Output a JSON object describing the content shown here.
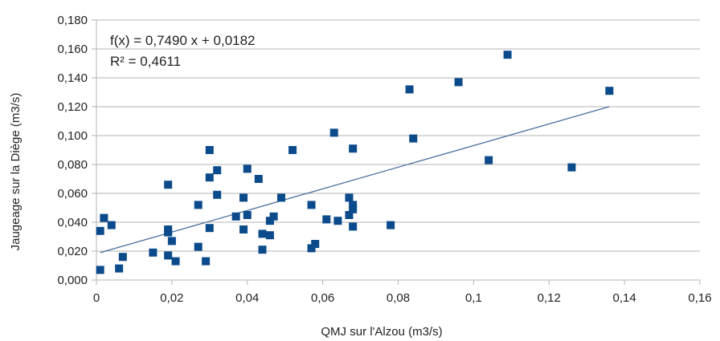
{
  "chart_data": {
    "type": "scatter",
    "title": "",
    "xlabel": "QMJ sur l'Alzou (m3/s)",
    "ylabel": "Jaugeage sur la Diège (m3/s)",
    "xlim": [
      0,
      0.16
    ],
    "ylim": [
      0,
      0.18
    ],
    "grid": true,
    "x_ticks": [
      "0",
      "0,02",
      "0,04",
      "0,06",
      "0,08",
      "0,1",
      "0,12",
      "0,14",
      "0,16"
    ],
    "y_ticks": [
      "0,000",
      "0,020",
      "0,040",
      "0,060",
      "0,080",
      "0,100",
      "0,120",
      "0,140",
      "0,160",
      "0,180"
    ],
    "series": [
      {
        "marker": "square",
        "color": "#0b4a8b",
        "points": [
          [
            0.001,
            0.007
          ],
          [
            0.001,
            0.034
          ],
          [
            0.002,
            0.043
          ],
          [
            0.004,
            0.038
          ],
          [
            0.006,
            0.008
          ],
          [
            0.007,
            0.016
          ],
          [
            0.015,
            0.019
          ],
          [
            0.019,
            0.066
          ],
          [
            0.019,
            0.035
          ],
          [
            0.019,
            0.033
          ],
          [
            0.019,
            0.017
          ],
          [
            0.02,
            0.027
          ],
          [
            0.021,
            0.013
          ],
          [
            0.027,
            0.052
          ],
          [
            0.027,
            0.023
          ],
          [
            0.029,
            0.013
          ],
          [
            0.03,
            0.09
          ],
          [
            0.03,
            0.071
          ],
          [
            0.03,
            0.036
          ],
          [
            0.032,
            0.076
          ],
          [
            0.032,
            0.059
          ],
          [
            0.037,
            0.044
          ],
          [
            0.039,
            0.057
          ],
          [
            0.039,
            0.035
          ],
          [
            0.04,
            0.077
          ],
          [
            0.04,
            0.045
          ],
          [
            0.043,
            0.07
          ],
          [
            0.044,
            0.032
          ],
          [
            0.044,
            0.021
          ],
          [
            0.046,
            0.031
          ],
          [
            0.046,
            0.041
          ],
          [
            0.047,
            0.044
          ],
          [
            0.049,
            0.057
          ],
          [
            0.052,
            0.09
          ],
          [
            0.057,
            0.052
          ],
          [
            0.057,
            0.022
          ],
          [
            0.058,
            0.025
          ],
          [
            0.061,
            0.042
          ],
          [
            0.063,
            0.102
          ],
          [
            0.064,
            0.041
          ],
          [
            0.067,
            0.057
          ],
          [
            0.067,
            0.045
          ],
          [
            0.068,
            0.052
          ],
          [
            0.068,
            0.049
          ],
          [
            0.068,
            0.091
          ],
          [
            0.068,
            0.037
          ],
          [
            0.078,
            0.038
          ],
          [
            0.083,
            0.132
          ],
          [
            0.084,
            0.098
          ],
          [
            0.096,
            0.137
          ],
          [
            0.104,
            0.083
          ],
          [
            0.109,
            0.156
          ],
          [
            0.126,
            0.078
          ],
          [
            0.136,
            0.131
          ]
        ]
      }
    ],
    "trendline": {
      "type": "linear",
      "slope": 0.749,
      "intercept": 0.0182,
      "x_range": [
        0.001,
        0.136
      ],
      "color": "#4a6e9e",
      "equation_label": "f(x) = 0,7490 x + 0,0182",
      "r2_label": "R² = 0,4611"
    }
  }
}
